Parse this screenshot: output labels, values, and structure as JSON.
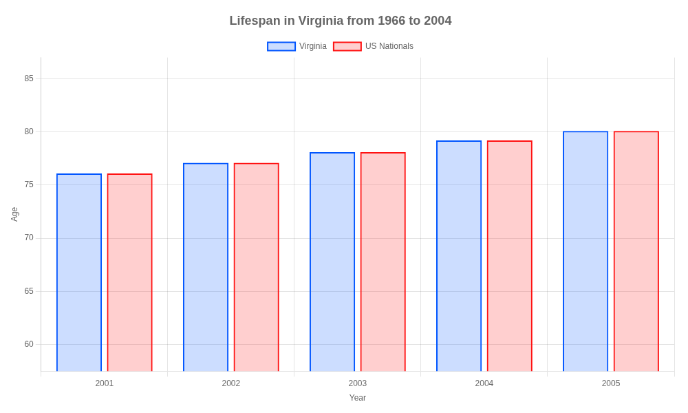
{
  "chart_data": {
    "type": "bar",
    "title": "Lifespan in Virginia from 1966 to 2004",
    "xlabel": "Year",
    "ylabel": "Age",
    "categories": [
      "2001",
      "2002",
      "2003",
      "2004",
      "2005"
    ],
    "series": [
      {
        "name": "Virginia",
        "color": "#0055ff",
        "values": [
          76.1,
          77.1,
          78.1,
          79.2,
          80.1
        ]
      },
      {
        "name": "US Nationals",
        "color": "#ff1111",
        "values": [
          76.1,
          77.1,
          78.1,
          79.2,
          80.1
        ]
      }
    ],
    "ylim": [
      57.5,
      87
    ],
    "yticks": [
      60,
      65,
      70,
      75,
      80,
      85
    ],
    "grid": true,
    "legend": "top"
  }
}
